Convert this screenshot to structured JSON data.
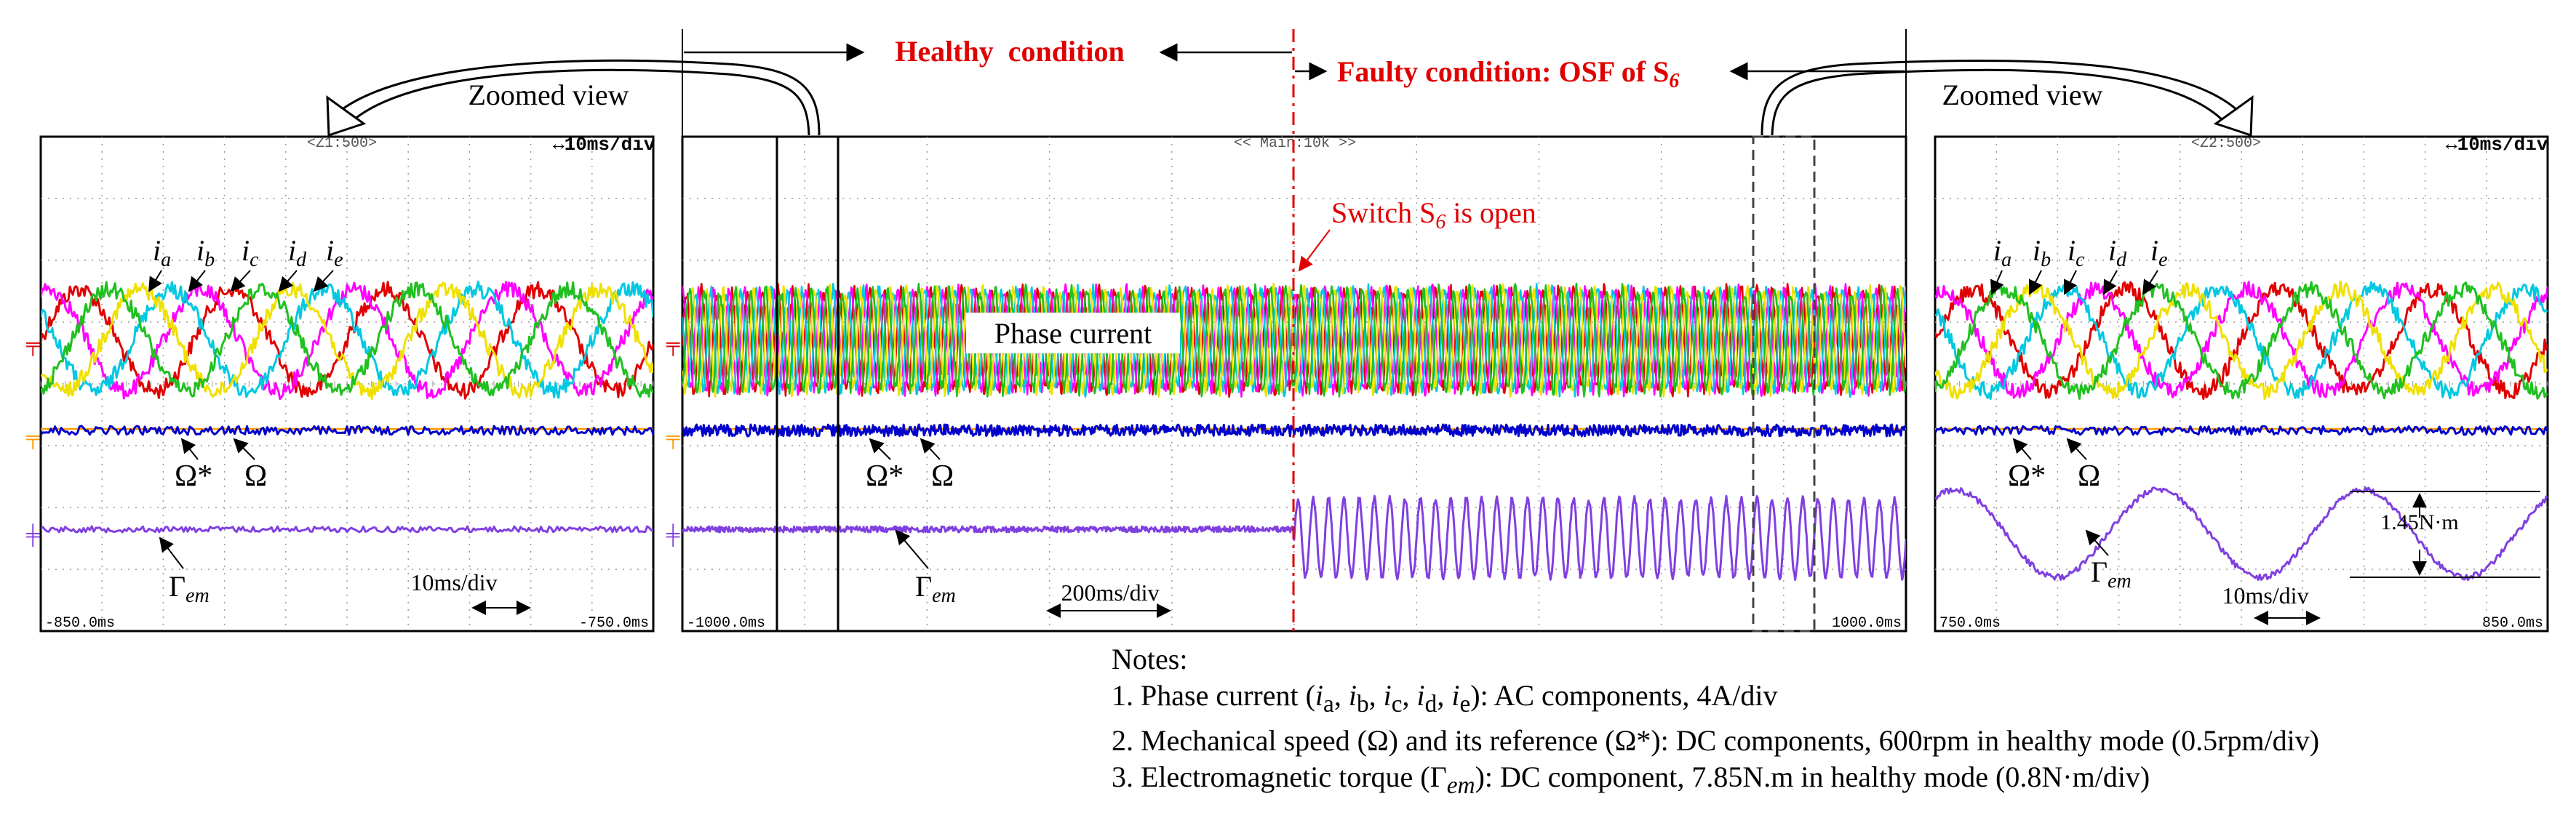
{
  "chart_data": [
    {
      "type": "line",
      "id": "left-zoom",
      "title": "",
      "header_center": "<Z1:500>",
      "header_right": "↔10ms/div",
      "x_start_label": "-850.0ms",
      "x_end_label": "-750.0ms",
      "xlim_ms": [
        -850,
        -750
      ],
      "scale_label": "10ms/div",
      "annotation": "Zoomed view",
      "series": [
        {
          "name": "ia",
          "color": "#e00000",
          "waveform": "sine",
          "cycles": 4,
          "phase_deg": 0,
          "amplitude_div": 1.0
        },
        {
          "name": "ib",
          "color": "#ff00ff",
          "waveform": "sine",
          "cycles": 4,
          "phase_deg": 72,
          "amplitude_div": 1.0
        },
        {
          "name": "ic",
          "color": "#00c8e0",
          "waveform": "sine",
          "cycles": 4,
          "phase_deg": 144,
          "amplitude_div": 1.0
        },
        {
          "name": "id",
          "color": "#f0e000",
          "waveform": "sine",
          "cycles": 4,
          "phase_deg": 216,
          "amplitude_div": 1.0
        },
        {
          "name": "ie",
          "color": "#20c020",
          "waveform": "sine",
          "cycles": 4,
          "phase_deg": 288,
          "amplitude_div": 1.0
        },
        {
          "name": "Omega*",
          "color": "#ff9900",
          "waveform": "dc"
        },
        {
          "name": "Omega",
          "color": "#0000cc",
          "waveform": "dc_noise"
        },
        {
          "name": "Gamma_em",
          "color": "#8040e0",
          "waveform": "dc_noise"
        }
      ],
      "labels": {
        "ia": "i",
        "ia_sub": "a",
        "ib": "i",
        "ib_sub": "b",
        "ic": "i",
        "ic_sub": "c",
        "id": "i",
        "id_sub": "d",
        "ie": "i",
        "ie_sub": "e",
        "omega_ref": "Ω*",
        "omega": "Ω",
        "torque": "Γ",
        "torque_sub": "em"
      }
    },
    {
      "type": "line",
      "id": "main",
      "header_center": "<< Main:10k >>",
      "x_start_label": "-1000.0ms",
      "x_end_label": "1000.0ms",
      "xlim_ms": [
        -1000,
        1000
      ],
      "fault_time_ms": 0,
      "scale_label": "200ms/div",
      "phase_current_label": "Phase current",
      "fault_annotation": "Switch S",
      "fault_annotation_sub": "6",
      "fault_annotation_tail": " is open",
      "healthy_label": "Healthy  condition",
      "faulty_label": "Faulty condition: OSF of S",
      "faulty_label_sub": "6",
      "series": [
        {
          "name": "phase currents",
          "colors": [
            "#e00000",
            "#ff00ff",
            "#00c8e0",
            "#f0e000",
            "#20c020"
          ],
          "waveform": "dense_sine"
        },
        {
          "name": "Omega*",
          "color": "#ff9900",
          "waveform": "dc"
        },
        {
          "name": "Omega",
          "color": "#0000cc",
          "waveform": "dc_noise"
        },
        {
          "name": "Gamma_em",
          "color": "#8040e0",
          "waveform": "dc_then_oscillation",
          "fault_cycles": 40
        }
      ],
      "labels": {
        "omega_ref": "Ω*",
        "omega": "Ω",
        "torque": "Γ",
        "torque_sub": "em"
      }
    },
    {
      "type": "line",
      "id": "right-zoom",
      "header_center": "<Z2:500>",
      "header_right": "↔10ms/div",
      "x_start_label": "750.0ms",
      "x_end_label": "850.0ms",
      "xlim_ms": [
        750,
        850
      ],
      "scale_label": "10ms/div",
      "annotation": "Zoomed view",
      "torque_ripple_label": "1.45N·m",
      "series": [
        {
          "name": "ia",
          "color": "#e00000",
          "waveform": "sine",
          "cycles": 4,
          "phase_deg": 0,
          "amplitude_div": 1.0
        },
        {
          "name": "ib",
          "color": "#ff00ff",
          "waveform": "sine",
          "cycles": 4,
          "phase_deg": 72,
          "amplitude_div": 1.0
        },
        {
          "name": "ic",
          "color": "#00c8e0",
          "waveform": "sine",
          "cycles": 4,
          "phase_deg": 144,
          "amplitude_div": 1.0
        },
        {
          "name": "id",
          "color": "#f0e000",
          "waveform": "sine",
          "cycles": 4,
          "phase_deg": 216,
          "amplitude_div": 1.0
        },
        {
          "name": "ie",
          "color": "#20c020",
          "waveform": "sine",
          "cycles": 4,
          "phase_deg": 288,
          "amplitude_div": 1.0
        },
        {
          "name": "Omega*",
          "color": "#ff9900",
          "waveform": "dc"
        },
        {
          "name": "Omega",
          "color": "#0000cc",
          "waveform": "dc_noise"
        },
        {
          "name": "Gamma_em",
          "color": "#8040e0",
          "waveform": "oscillation",
          "cycles": 3,
          "ripple_Nm": 1.45
        }
      ],
      "labels": {
        "ia": "i",
        "ia_sub": "a",
        "ib": "i",
        "ib_sub": "b",
        "ic": "i",
        "ic_sub": "c",
        "id": "i",
        "id_sub": "d",
        "ie": "i",
        "ie_sub": "e",
        "omega_ref": "Ω*",
        "omega": "Ω",
        "torque": "Γ",
        "torque_sub": "em"
      }
    }
  ],
  "notes": {
    "title": "Notes:",
    "n1_a": "1. Phase current (",
    "n1_vars": [
      "i",
      "a",
      ", ",
      "i",
      "b",
      ", ",
      "i",
      "c",
      ", ",
      "i",
      "d",
      ", ",
      "i",
      "e"
    ],
    "n1_b": "): AC components, 4A/div",
    "n2": "2. Mechanical speed (Ω) and its reference (Ω*): DC components, 600rpm in healthy mode  (0.5rpm/div)",
    "n3_a": "3. Electromagnetic torque (Γ",
    "n3_sub": "em",
    "n3_b": "): DC component, 7.85N.m in healthy mode (0.8N·m/div)"
  },
  "colors": {
    "fault_line": "#e00000",
    "grid": "#909090",
    "text": "#000000"
  }
}
